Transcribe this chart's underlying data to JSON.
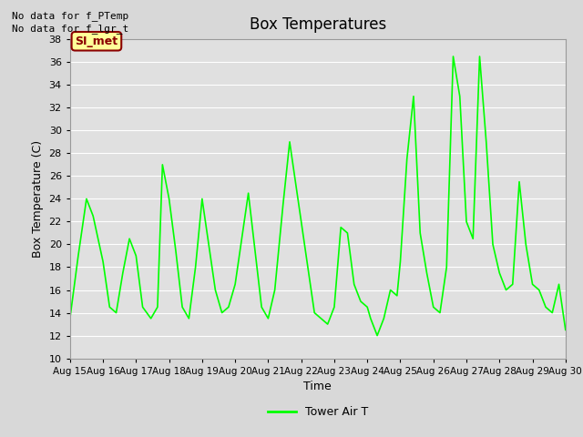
{
  "title": "Box Temperatures",
  "xlabel": "Time",
  "ylabel": "Box Temperature (C)",
  "annotations": [
    "No data for f_PTemp",
    "No data for f_lgr_t"
  ],
  "box_label": "SI_met",
  "legend_label": "Tower Air T",
  "ylim": [
    10,
    38
  ],
  "xlim": [
    0,
    15
  ],
  "yticks": [
    10,
    12,
    14,
    16,
    18,
    20,
    22,
    24,
    26,
    28,
    30,
    32,
    34,
    36,
    38
  ],
  "xtick_labels": [
    "Aug 15",
    "Aug 16",
    "Aug 17",
    "Aug 18",
    "Aug 19",
    "Aug 20",
    "Aug 21",
    "Aug 22",
    "Aug 23",
    "Aug 24",
    "Aug 25",
    "Aug 26",
    "Aug 27",
    "Aug 28",
    "Aug 29",
    "Aug 30"
  ],
  "line_color": "#00ff00",
  "background_color": "#d8d8d8",
  "plot_bg_color": "#e0e0e0",
  "grid_color": "#ffffff",
  "box_fill": "#ffff99",
  "box_edge": "#8b0000",
  "box_text_color": "#8b0000",
  "x": [
    0.0,
    0.25,
    0.5,
    0.7,
    1.0,
    1.2,
    1.4,
    1.6,
    1.8,
    2.0,
    2.2,
    2.45,
    2.65,
    2.8,
    3.0,
    3.2,
    3.4,
    3.6,
    3.8,
    4.0,
    4.2,
    4.4,
    4.6,
    4.8,
    5.0,
    5.2,
    5.4,
    5.6,
    5.8,
    6.0,
    6.2,
    6.45,
    6.65,
    6.85,
    7.0,
    7.2,
    7.4,
    7.6,
    7.8,
    8.0,
    8.2,
    8.4,
    8.6,
    8.8,
    9.0,
    9.1,
    9.3,
    9.5,
    9.7,
    9.9,
    10.0,
    10.2,
    10.4,
    10.6,
    10.8,
    11.0,
    11.2,
    11.4,
    11.6,
    11.8,
    12.0,
    12.2,
    12.4,
    12.6,
    12.8,
    13.0,
    13.2,
    13.4,
    13.6,
    13.8,
    14.0,
    14.2,
    14.4,
    14.6,
    14.8,
    15.0
  ],
  "y": [
    13.5,
    19.0,
    24.0,
    22.5,
    18.5,
    14.5,
    14.0,
    17.5,
    20.5,
    19.0,
    14.5,
    13.5,
    14.5,
    27.0,
    24.0,
    19.5,
    14.5,
    13.5,
    18.0,
    24.0,
    20.0,
    16.0,
    14.0,
    14.5,
    16.5,
    20.5,
    24.5,
    19.5,
    14.5,
    13.5,
    16.0,
    23.5,
    29.0,
    25.0,
    22.0,
    18.0,
    14.0,
    13.5,
    13.0,
    14.5,
    21.5,
    21.0,
    16.5,
    15.0,
    14.5,
    13.5,
    12.0,
    13.5,
    16.0,
    15.5,
    18.5,
    27.5,
    33.0,
    21.0,
    17.5,
    14.5,
    14.0,
    18.0,
    36.5,
    33.0,
    22.0,
    20.5,
    36.5,
    29.0,
    20.0,
    17.5,
    16.0,
    16.5,
    25.5,
    20.0,
    16.5,
    16.0,
    14.5,
    14.0,
    16.5,
    12.5
  ]
}
